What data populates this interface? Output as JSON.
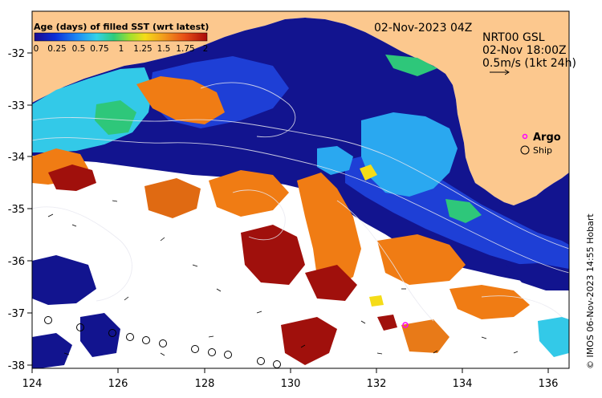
{
  "map": {
    "lon_range": [
      124,
      136.5
    ],
    "lat_range": [
      -38.05,
      -31.3
    ],
    "x_ticks": [
      "124",
      "126",
      "128",
      "130",
      "132",
      "134",
      "136"
    ],
    "y_ticks": [
      "-32",
      "-33",
      "-34",
      "-35",
      "-36",
      "-37",
      "-38"
    ],
    "land_color": "#fcc88e",
    "no_data_color": "#ffffff"
  },
  "legend": {
    "title": "Age (days) of filled SST (wrt latest)",
    "ticks": [
      "0",
      "0.25",
      "0.5",
      "0.75",
      "1",
      "1.25",
      "1.5",
      "1.75",
      "2"
    ],
    "colors": [
      "#1a0a90",
      "#0c2fd8",
      "#1d8cf5",
      "#33d2e8",
      "#2ecc7a",
      "#9ee02d",
      "#f5dc18",
      "#f29a1c",
      "#e84e15",
      "#a80a0a"
    ]
  },
  "header": {
    "date_label": "02-Nov-2023 04Z",
    "product_label": "NRT00 GSL",
    "time_label": "02-Nov 18:00Z",
    "scale_label": "0.5m/s (1kt 24h)"
  },
  "markers_legend": {
    "argo_label": "Argo",
    "ship_label": "Ship",
    "argo_color": "#ff00ff"
  },
  "credit": "© IMOS 06-Nov-2023 14:55 Hobart"
}
